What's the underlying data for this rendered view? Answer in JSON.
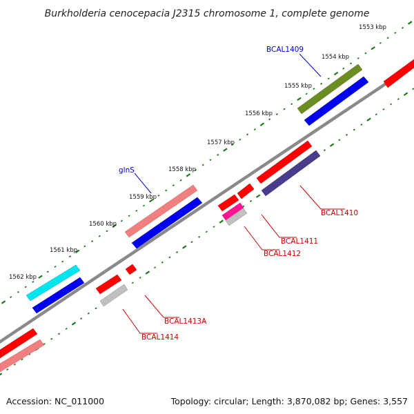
{
  "title": "Burkholderia cenocepacia J2315 chromosome 1, complete genome",
  "footer": {
    "accession": "Accession: NC_011000",
    "summary": "Topology: circular; Length: 3,870,082 bp; Genes: 3,557"
  },
  "scale": {
    "unit": "kbp",
    "labels": [
      "1553 kbp",
      "1554 kbp",
      "1555 kbp",
      "1556 kbp",
      "1557 kbp",
      "1558 kbp",
      "1559 kbp",
      "1560 kbp",
      "1561 kbp",
      "1562 kbp"
    ]
  },
  "colors": {
    "backbone": "#8a8a8a",
    "ticks": "#1a7a1a",
    "label_plus": "#0000cc",
    "label_minus": "#cc0000"
  },
  "genes": [
    {
      "label": "BCAL1409",
      "color": "#6b8e23",
      "strand": "+",
      "track": "outer"
    },
    {
      "label": "glnS",
      "color": "#f08080",
      "strand": "+",
      "track": "outer"
    },
    {
      "label": "BCAL1410",
      "color": "#483d8b",
      "strand": "-",
      "track": "inner"
    },
    {
      "label": "BCAL1411",
      "color": "#ff1493",
      "strand": "-",
      "track": "inner"
    },
    {
      "label": "BCAL1412",
      "color": "#c0c0c0",
      "strand": "-",
      "track": "inner"
    },
    {
      "label": "BCAL1413A",
      "color": "#ff0000",
      "strand": "-",
      "track": "inner"
    },
    {
      "label": "BCAL1414",
      "color": "#c0c0c0",
      "strand": "-",
      "track": "inner"
    },
    {
      "label": "",
      "color": "#00e5ee",
      "strand": "+",
      "track": "outer"
    }
  ]
}
